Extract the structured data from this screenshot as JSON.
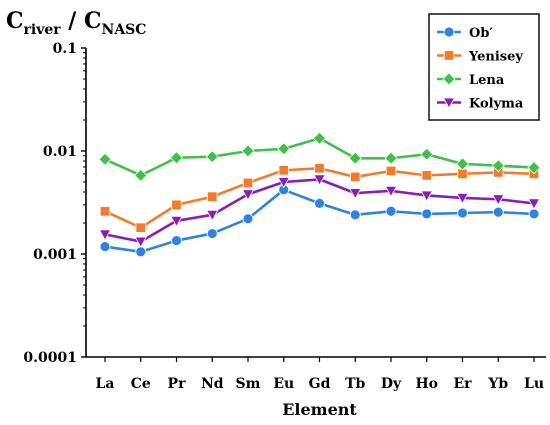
{
  "chart_data": {
    "type": "line",
    "y_axis_title": {
      "main_1": "C",
      "sub_1": "river",
      "separator": " / ",
      "main_2": "C",
      "sub_2": "NASC"
    },
    "xlabel": "Element",
    "yscale": "log",
    "ylim": [
      0.0001,
      0.1
    ],
    "ytick_labels": [
      "0.1",
      "0.01",
      "0.001",
      "0.0001"
    ],
    "ytick_values": [
      0.1,
      0.01,
      0.001,
      0.0001
    ],
    "categories": [
      "La",
      "Ce",
      "Pr",
      "Nd",
      "Sm",
      "Eu",
      "Gd",
      "Tb",
      "Dy",
      "Ho",
      "Er",
      "Yb",
      "Lu"
    ],
    "legend_position": "top-right",
    "grid": false,
    "series": [
      {
        "name": "Ob′",
        "color": "#2f83dd",
        "marker": "circle",
        "values": [
          0.00118,
          0.00105,
          0.00135,
          0.00158,
          0.0022,
          0.0042,
          0.0031,
          0.0024,
          0.0026,
          0.00245,
          0.0025,
          0.00255,
          0.00245
        ]
      },
      {
        "name": "Yenisey",
        "color": "#f07d2d",
        "marker": "square",
        "values": [
          0.0026,
          0.0018,
          0.003,
          0.0036,
          0.0049,
          0.0065,
          0.0068,
          0.0056,
          0.0064,
          0.0058,
          0.006,
          0.0062,
          0.006
        ]
      },
      {
        "name": "Lena",
        "color": "#3fc04a",
        "marker": "diamond",
        "values": [
          0.0083,
          0.0058,
          0.0086,
          0.0088,
          0.01,
          0.0105,
          0.0133,
          0.0085,
          0.0085,
          0.0093,
          0.0075,
          0.0072,
          0.0069
        ]
      },
      {
        "name": "Kolyma",
        "color": "#8a1cb8",
        "marker": "triangle-down",
        "values": [
          0.00155,
          0.00132,
          0.0021,
          0.0024,
          0.0038,
          0.005,
          0.0053,
          0.0039,
          0.0041,
          0.0037,
          0.0035,
          0.0034,
          0.0031
        ]
      }
    ]
  }
}
